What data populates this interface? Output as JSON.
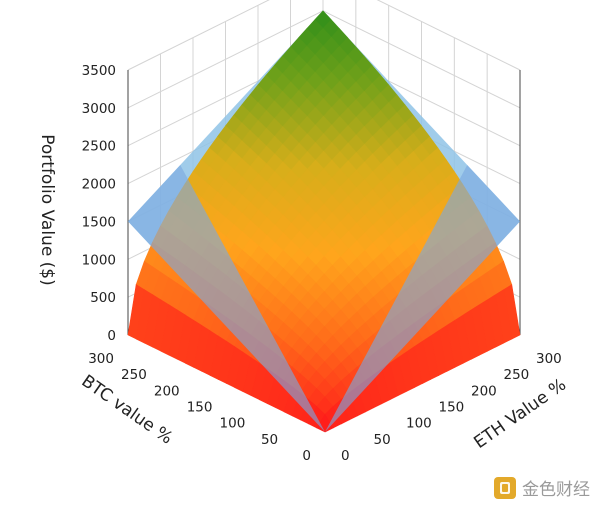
{
  "chart_data": {
    "type": "surface3d",
    "title": "",
    "xlabel": "BTC value %",
    "ylabel": "ETH Value %",
    "zlabel": "Portfolio Value ($)",
    "x_ticks": [
      "0",
      "50",
      "100",
      "150",
      "200",
      "250",
      "300"
    ],
    "y_ticks": [
      "0",
      "50",
      "100",
      "150",
      "200",
      "250",
      "300"
    ],
    "z_ticks": [
      "0",
      "500",
      "1000",
      "1500",
      "2000",
      "2500",
      "3000",
      "3500"
    ],
    "xlim": [
      0,
      300
    ],
    "ylim": [
      0,
      300
    ],
    "zlim": [
      0,
      3500
    ],
    "surfaces": [
      {
        "id": "hodl",
        "description": "linear plane",
        "corners": [
          {
            "x": 0,
            "y": 0,
            "z": 0
          },
          {
            "x": 300,
            "y": 0,
            "z": 1500
          },
          {
            "x": 0,
            "y": 300,
            "z": 1500
          },
          {
            "x": 300,
            "y": 300,
            "z": 3000
          }
        ],
        "color": "#8fc3e6"
      },
      {
        "id": "rebalanced",
        "description": "concave surface, z = 1000*sqrt(x*y)/100",
        "corners": [
          {
            "x": 0,
            "y": 0,
            "z": 0
          },
          {
            "x": 300,
            "y": 0,
            "z": 0
          },
          {
            "x": 0,
            "y": 300,
            "z": 0
          },
          {
            "x": 300,
            "y": 300,
            "z": 3000
          }
        ],
        "colorscale": [
          "#ff1a1a",
          "#ff6a1a",
          "#ffa51c",
          "#d7ae1a",
          "#70a11a",
          "#1f8a1a"
        ]
      }
    ],
    "grid": true
  },
  "watermark": {
    "text": "金色财经",
    "icon": "gold-b-logo-icon"
  }
}
